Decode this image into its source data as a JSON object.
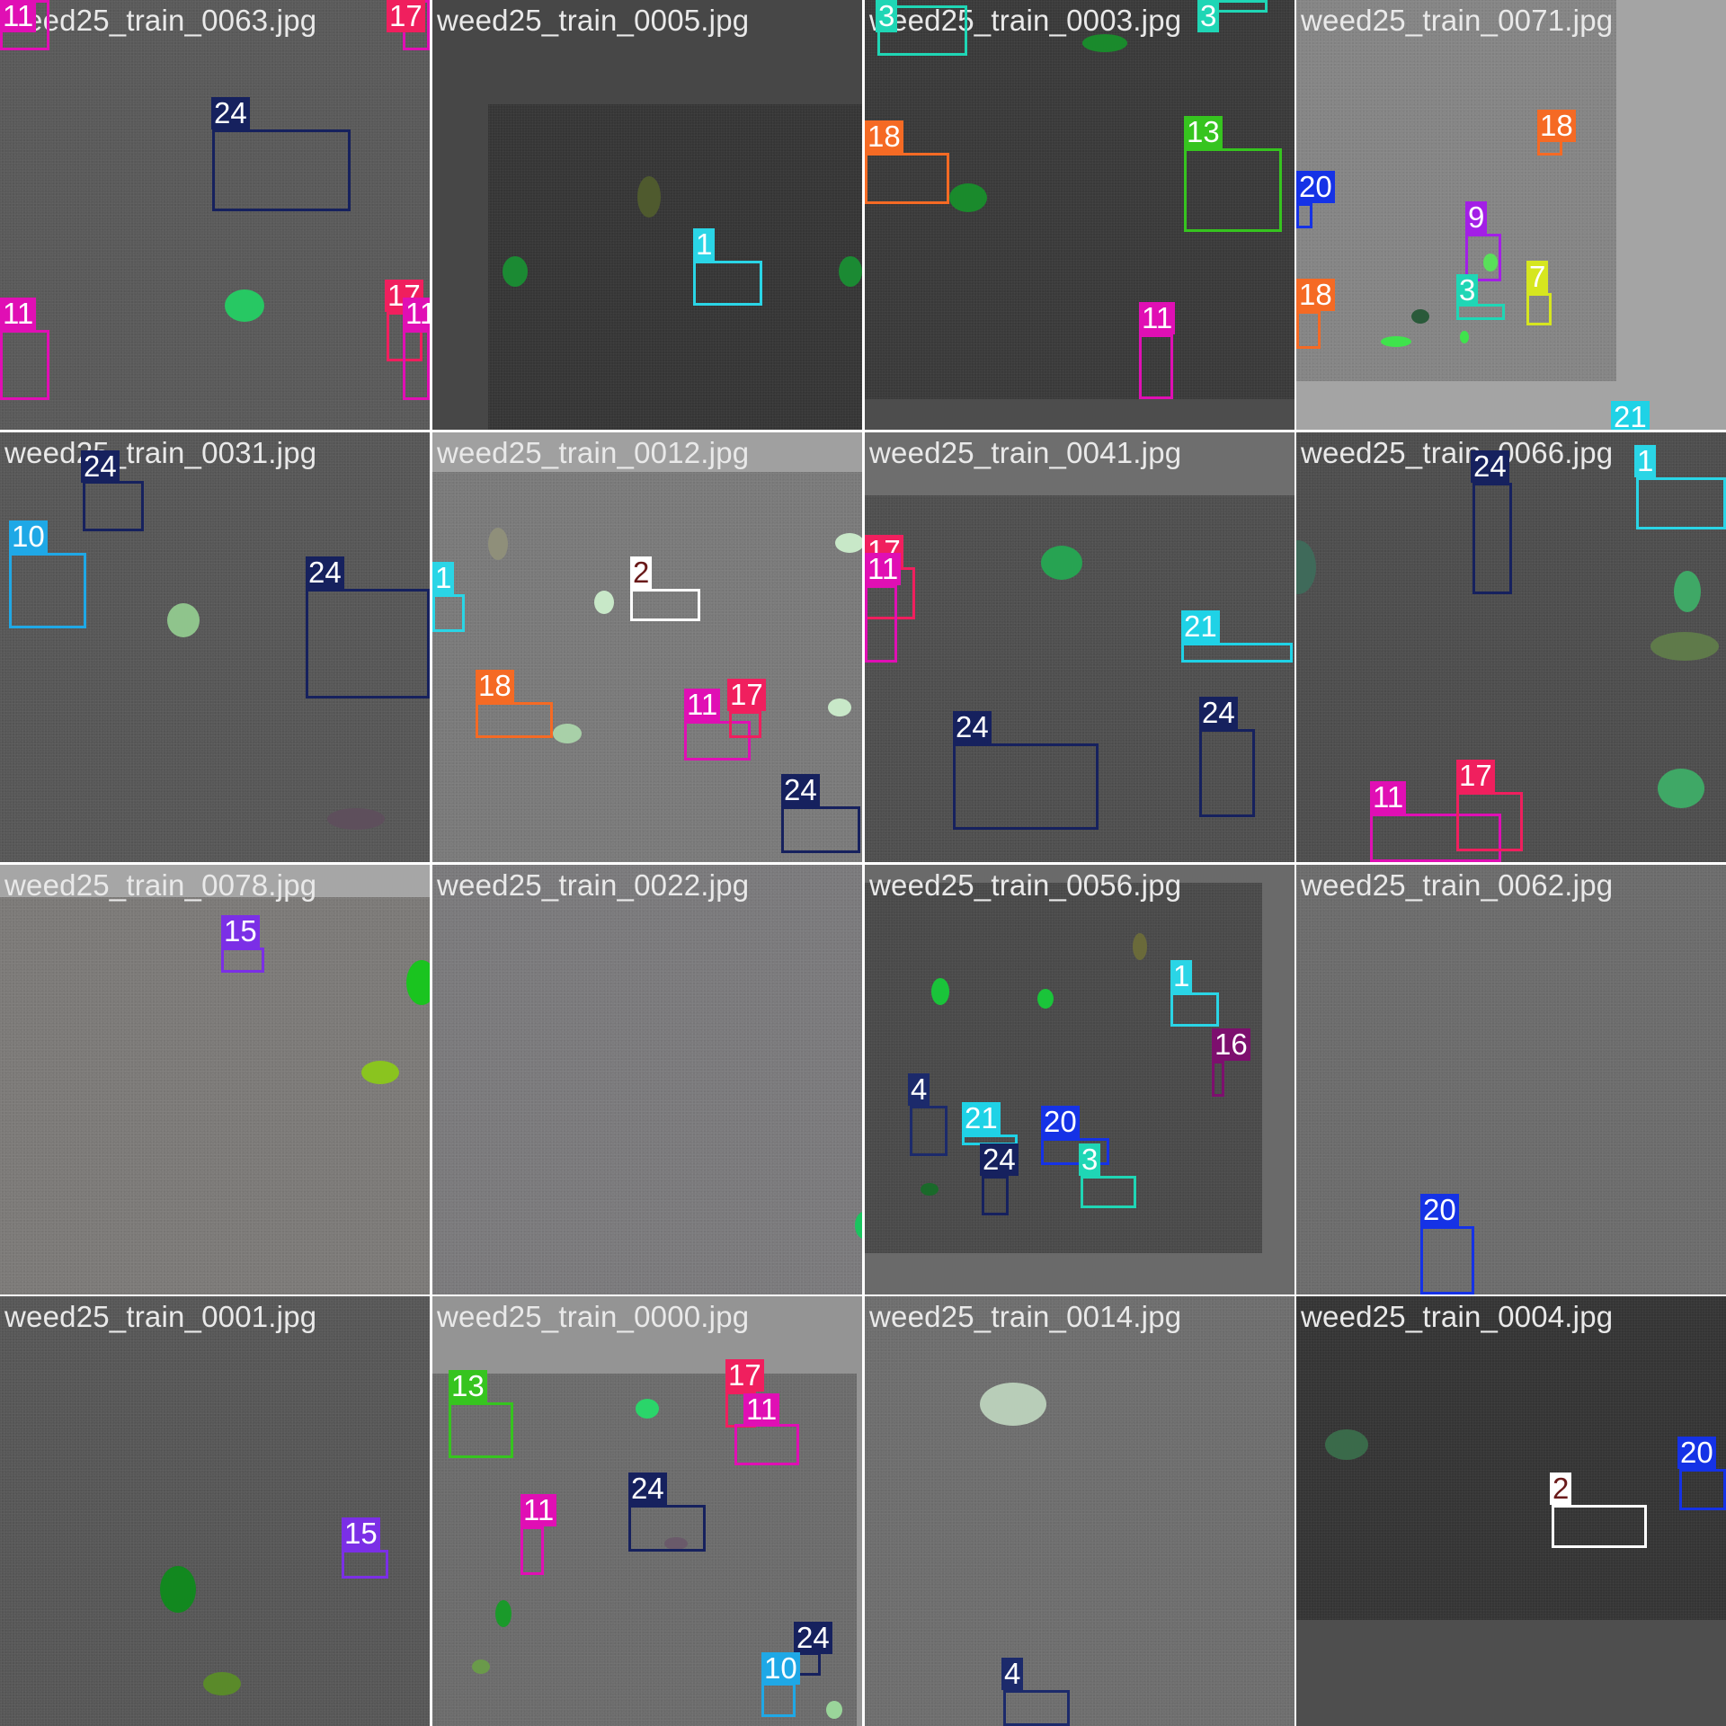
{
  "tiles": [
    {
      "file": "weed25_train_0063.jpg",
      "labels": [
        "11",
        "17",
        "24",
        "11",
        "17",
        "11"
      ]
    },
    {
      "file": "weed25_train_0005.jpg",
      "labels": [
        "1"
      ]
    },
    {
      "file": "weed25_train_0003.jpg",
      "labels": [
        "3",
        "3",
        "18",
        "13",
        "11"
      ]
    },
    {
      "file": "weed25_train_0071.jpg",
      "labels": [
        "18",
        "20",
        "9",
        "18",
        "3",
        "7",
        "21"
      ]
    },
    {
      "file": "weed25_train_0031.jpg",
      "labels": [
        "24",
        "10",
        "24"
      ]
    },
    {
      "file": "weed25_train_0012.jpg",
      "labels": [
        "1",
        "2",
        "18",
        "11",
        "17",
        "24"
      ]
    },
    {
      "file": "weed25_train_0041.jpg",
      "labels": [
        "17",
        "11",
        "21",
        "24",
        "24"
      ]
    },
    {
      "file": "weed25_train_0066.jpg",
      "labels": [
        "24",
        "1",
        "11",
        "17"
      ]
    },
    {
      "file": "weed25_train_0078.jpg",
      "labels": [
        "15"
      ]
    },
    {
      "file": "weed25_train_0022.jpg",
      "labels": []
    },
    {
      "file": "weed25_train_0056.jpg",
      "labels": [
        "1",
        "16",
        "4",
        "21",
        "20",
        "24",
        "3"
      ]
    },
    {
      "file": "weed25_train_0062.jpg",
      "labels": [
        "20"
      ]
    },
    {
      "file": "weed25_train_0001.jpg",
      "labels": [
        "15"
      ]
    },
    {
      "file": "weed25_train_0000.jpg",
      "labels": [
        "13",
        "17",
        "11",
        "11",
        "24",
        "24",
        "10"
      ]
    },
    {
      "file": "weed25_train_0014.jpg",
      "labels": [
        "4"
      ]
    },
    {
      "file": "weed25_train_0004.jpg",
      "labels": [
        "2",
        "20"
      ]
    }
  ],
  "class_colors": {
    "1": "#2ad5e6",
    "2": "#ffffff",
    "3": "#1fd6b5",
    "4": "#1c2a6b",
    "7": "#d6e61f",
    "9": "#a31fe6",
    "10": "#1fa8e6",
    "11": "#e00fb4",
    "13": "#36c41f",
    "15": "#7b2fe6",
    "16": "#7d0f6e",
    "17": "#f01f5e",
    "18": "#f56a24",
    "20": "#1532e6",
    "21": "#1fd2e6",
    "24": "#16215e"
  }
}
